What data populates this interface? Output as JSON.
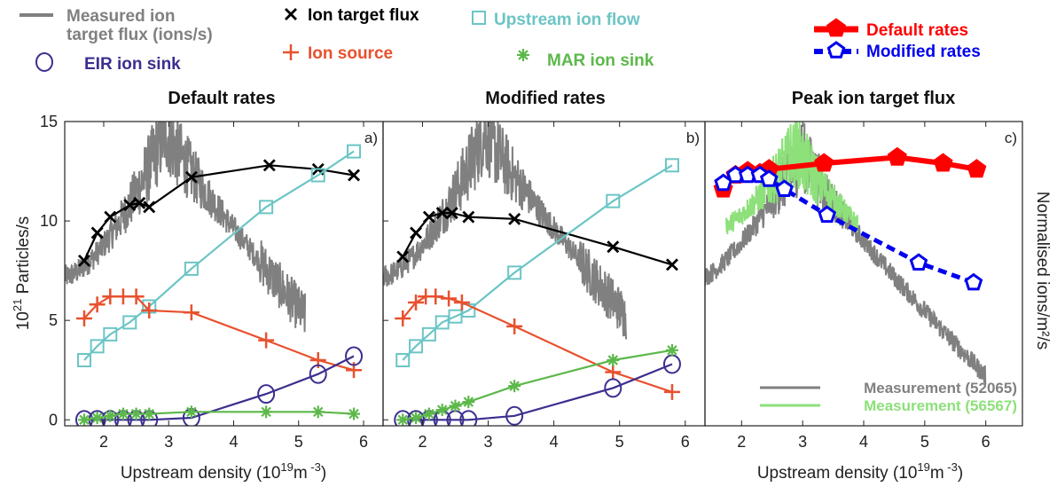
{
  "legend": {
    "measured_line1": "Measured ion",
    "measured_line2": "target flux (ions/s)",
    "eir": "EIR ion sink",
    "ion_target_flux": "Ion target flux",
    "ion_source": "Ion source",
    "upstream_ion_flow": "Upstream ion flow",
    "mar": "MAR ion sink",
    "default_rates": "Default rates",
    "modified_rates": "Modified rates"
  },
  "colors": {
    "measured": "#808080",
    "target_flux": "#000000",
    "upstream": "#6cc5c5",
    "source": "#e8512e",
    "eir": "#3b2f8f",
    "mar": "#5cb84a",
    "default": "#ff0000",
    "modified": "#0000ee",
    "measurement_56567": "#8de07a"
  },
  "y_left_label_prefix": "10",
  "y_left_label_exp": "21",
  "y_left_label_suffix": " Particles/s",
  "y_right_label": "Normalised ions/m²/s",
  "chart_data": [
    {
      "type": "line",
      "title": "Default rates",
      "panel_label": "a)",
      "xlim": [
        1.4,
        6.3
      ],
      "ylim": [
        -0.3,
        15
      ],
      "xticks": [
        2,
        3,
        4,
        5,
        6
      ],
      "yticks": [
        0,
        5,
        10,
        15
      ],
      "xlabel_main": "Upstream density (10",
      "xlabel_exp1": "19",
      "xlabel_mid": "m",
      "xlabel_exp2": " -3",
      "xlabel_end": ")",
      "series": [
        {
          "key": "target_flux",
          "marker": "x",
          "x": [
            1.7,
            1.9,
            2.1,
            2.4,
            2.55,
            2.7,
            3.35,
            4.55,
            5.3,
            5.85
          ],
          "y": [
            8.0,
            9.4,
            10.2,
            10.8,
            10.9,
            10.7,
            12.2,
            12.8,
            12.6,
            12.3
          ]
        },
        {
          "key": "upstream",
          "marker": "square",
          "x": [
            1.7,
            1.9,
            2.1,
            2.4,
            2.7,
            3.35,
            4.5,
            5.3,
            5.85
          ],
          "y": [
            3.0,
            3.7,
            4.3,
            4.9,
            5.7,
            7.6,
            10.7,
            12.3,
            13.5
          ]
        },
        {
          "key": "source",
          "marker": "plus",
          "x": [
            1.7,
            1.9,
            2.1,
            2.3,
            2.5,
            2.7,
            3.35,
            4.5,
            5.3,
            5.85
          ],
          "y": [
            5.1,
            5.8,
            6.2,
            6.2,
            6.2,
            5.5,
            5.4,
            4.0,
            3.0,
            2.5
          ]
        },
        {
          "key": "eir",
          "marker": "circle",
          "x": [
            1.7,
            1.9,
            2.1,
            2.3,
            2.5,
            2.7,
            3.35,
            4.5,
            5.3,
            5.85
          ],
          "y": [
            0,
            0,
            0,
            0,
            0,
            0,
            0.1,
            1.3,
            2.3,
            3.2
          ]
        },
        {
          "key": "mar",
          "marker": "asterisk",
          "x": [
            1.7,
            1.9,
            2.1,
            2.3,
            2.5,
            2.7,
            3.35,
            4.5,
            5.3,
            5.85
          ],
          "y": [
            0.0,
            0.1,
            0.2,
            0.3,
            0.3,
            0.3,
            0.4,
            0.4,
            0.4,
            0.3
          ]
        }
      ],
      "measured": {
        "x_start": 1.4,
        "x_end": 5.1,
        "peak_x": 2.95,
        "peak_y": 14.5,
        "base_y": 7.2,
        "end_y": 5.2
      }
    },
    {
      "type": "line",
      "title": "Modified rates",
      "panel_label": "b)",
      "xlim": [
        1.4,
        6.3
      ],
      "ylim": [
        -0.3,
        15
      ],
      "xticks": [
        2,
        3,
        4,
        5,
        6
      ],
      "yticks": [
        0,
        5,
        10,
        15
      ],
      "xlabel_main": "",
      "xlabel_exp1": "",
      "xlabel_mid": "",
      "xlabel_exp2": "",
      "xlabel_end": "",
      "series": [
        {
          "key": "target_flux",
          "marker": "x",
          "x": [
            1.7,
            1.9,
            2.1,
            2.3,
            2.45,
            2.7,
            3.4,
            4.9,
            5.8
          ],
          "y": [
            8.2,
            9.4,
            10.2,
            10.4,
            10.4,
            10.2,
            10.1,
            8.7,
            7.8
          ]
        },
        {
          "key": "upstream",
          "marker": "square",
          "x": [
            1.7,
            1.9,
            2.1,
            2.3,
            2.5,
            2.7,
            3.4,
            4.9,
            5.8
          ],
          "y": [
            3.0,
            3.7,
            4.3,
            4.9,
            5.2,
            5.5,
            7.4,
            11.0,
            12.8
          ]
        },
        {
          "key": "source",
          "marker": "plus",
          "x": [
            1.7,
            1.9,
            2.05,
            2.2,
            2.4,
            2.6,
            3.4,
            4.9,
            5.8
          ],
          "y": [
            5.1,
            5.9,
            6.2,
            6.2,
            6.1,
            5.9,
            4.7,
            2.4,
            1.4
          ]
        },
        {
          "key": "eir",
          "marker": "circle",
          "x": [
            1.7,
            1.9,
            2.1,
            2.3,
            2.5,
            2.7,
            3.4,
            4.9,
            5.8
          ],
          "y": [
            0,
            0,
            0,
            0,
            0,
            0,
            0.2,
            1.6,
            2.8
          ]
        },
        {
          "key": "mar",
          "marker": "asterisk",
          "x": [
            1.7,
            1.9,
            2.1,
            2.3,
            2.5,
            2.7,
            3.4,
            4.9,
            5.8
          ],
          "y": [
            0.0,
            0.1,
            0.3,
            0.5,
            0.7,
            0.9,
            1.7,
            3.0,
            3.5
          ]
        }
      ],
      "measured": {
        "x_start": 1.4,
        "x_end": 5.1,
        "peak_x": 2.95,
        "peak_y": 14.5,
        "base_y": 7.2,
        "end_y": 5.2
      }
    },
    {
      "type": "line",
      "title": "Peak ion target flux",
      "panel_label": "c)",
      "xlim": [
        1.4,
        6.6
      ],
      "ylim": [
        -0.3,
        15
      ],
      "xticks": [
        2,
        3,
        4,
        5,
        6
      ],
      "yticks": [],
      "xlabel_main": "Upstream density (10",
      "xlabel_exp1": "19",
      "xlabel_mid": "m",
      "xlabel_exp2": " -3",
      "xlabel_end": ")",
      "series": [
        {
          "key": "default",
          "marker": "pentagon-filled",
          "x": [
            1.7,
            1.9,
            2.1,
            2.3,
            2.45,
            3.35,
            4.55,
            5.3,
            5.85
          ],
          "y": [
            11.6,
            12.3,
            12.5,
            12.4,
            12.6,
            12.9,
            13.2,
            12.9,
            12.6
          ]
        },
        {
          "key": "modified",
          "marker": "pentagon-open",
          "x": [
            1.7,
            1.9,
            2.1,
            2.3,
            2.45,
            2.7,
            3.4,
            4.9,
            5.8
          ],
          "y": [
            11.9,
            12.3,
            12.3,
            12.3,
            12.1,
            11.6,
            10.3,
            7.9,
            6.9
          ]
        }
      ],
      "measurement_legend": [
        {
          "key": "measured",
          "label": "Measurement (52065)"
        },
        {
          "key": "measurement_56567",
          "label": "Measurement (56567)"
        }
      ]
    }
  ]
}
